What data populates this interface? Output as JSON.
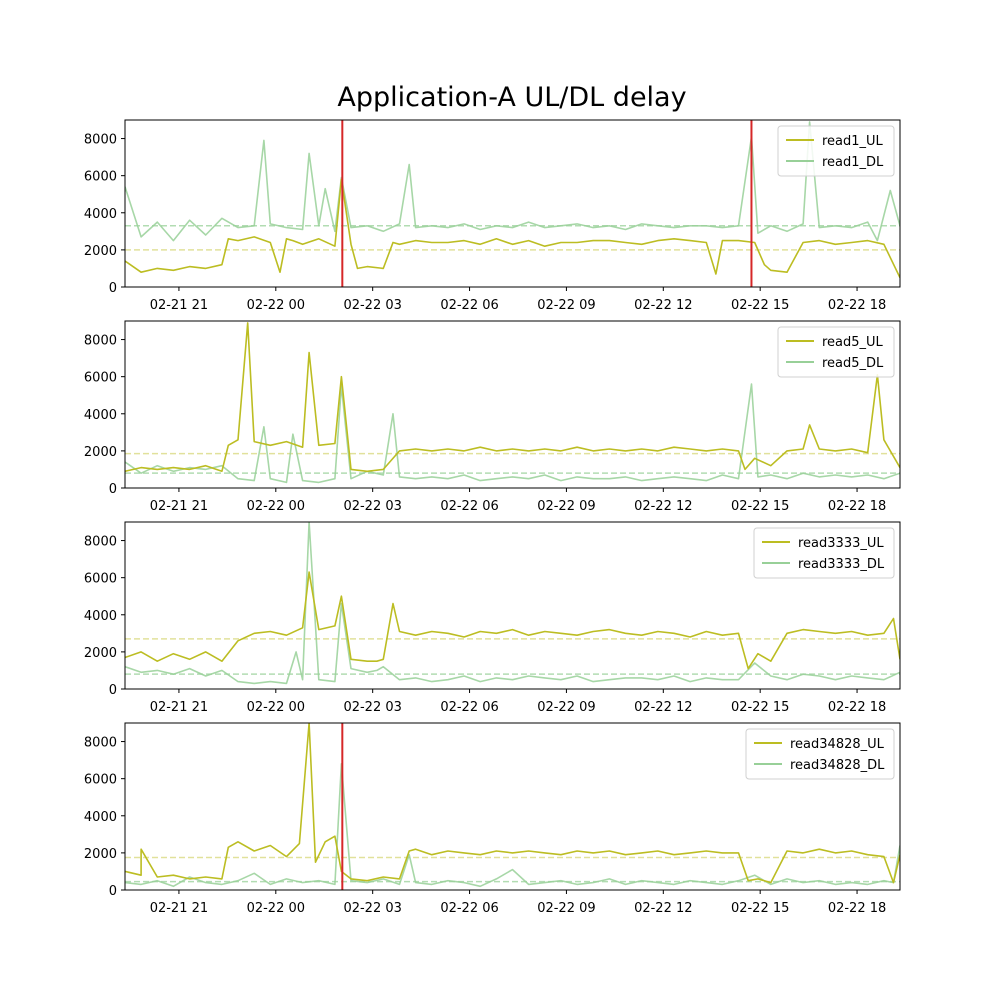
{
  "figure": {
    "title": "Application-A UL/DL delay"
  },
  "chart_data": [
    {
      "type": "line",
      "x_ticks": [
        "02-21 21",
        "02-22 00",
        "02-22 03",
        "02-22 06",
        "02-22 09",
        "02-22 12",
        "02-22 15",
        "02-22 18"
      ],
      "x_range": [
        "02-21 19:20",
        "02-22 19:20"
      ],
      "x_tick_hours": [
        1.67,
        4.67,
        7.67,
        10.67,
        13.67,
        16.67,
        19.67,
        22.67
      ],
      "ylim": [
        0,
        9000
      ],
      "y_ticks": [
        0,
        2000,
        4000,
        6000,
        8000
      ],
      "legend_position": "top-right",
      "series": [
        {
          "name": "read1_UL",
          "color": "#bcbd22",
          "mean_line": 2000,
          "x": [
            0,
            0.5,
            1,
            1.5,
            2,
            2.5,
            3,
            3.2,
            3.5,
            4,
            4.5,
            4.8,
            5,
            5.2,
            5.5,
            6,
            6.5,
            6.7,
            7,
            7.2,
            7.5,
            8,
            8.3,
            8.5,
            9,
            9.5,
            10,
            10.5,
            11,
            11.5,
            12,
            12.5,
            13,
            13.5,
            14,
            14.5,
            15,
            15.5,
            16,
            16.5,
            17,
            17.5,
            18,
            18.3,
            18.5,
            19,
            19.5,
            19.8,
            20,
            20.5,
            21,
            21.5,
            22,
            22.5,
            23,
            23.5,
            24
          ],
          "values": [
            1400,
            800,
            1000,
            900,
            1100,
            1000,
            1200,
            2600,
            2500,
            2700,
            2400,
            800,
            2600,
            2500,
            2300,
            2600,
            2200,
            5800,
            2300,
            1000,
            1100,
            1000,
            2400,
            2300,
            2500,
            2400,
            2400,
            2500,
            2300,
            2600,
            2300,
            2500,
            2200,
            2400,
            2400,
            2500,
            2500,
            2400,
            2300,
            2500,
            2600,
            2500,
            2400,
            700,
            2500,
            2500,
            2400,
            1200,
            900,
            800,
            2400,
            2500,
            2300,
            2400,
            2500,
            2300,
            500
          ]
        },
        {
          "name": "read1_DL",
          "color": "#98d098",
          "mean_line": 3300,
          "x": [
            0,
            0.5,
            1,
            1.5,
            2,
            2.5,
            3,
            3.5,
            4,
            4.3,
            4.5,
            5,
            5.5,
            5.7,
            6,
            6.2,
            6.5,
            6.7,
            7,
            7.5,
            8,
            8.5,
            8.8,
            9,
            9.5,
            10,
            10.5,
            11,
            11.5,
            12,
            12.5,
            13,
            13.5,
            14,
            14.5,
            15,
            15.5,
            16,
            16.5,
            17,
            17.5,
            18,
            18.5,
            19,
            19.4,
            19.6,
            20,
            20.5,
            21,
            21.2,
            21.5,
            22,
            22.5,
            23,
            23.3,
            23.7,
            24
          ],
          "values": [
            5400,
            2700,
            3500,
            2500,
            3600,
            2800,
            3700,
            3200,
            3300,
            7900,
            3400,
            3200,
            3100,
            7200,
            3300,
            5300,
            3000,
            5900,
            3200,
            3300,
            3000,
            3400,
            6600,
            3200,
            3300,
            3200,
            3400,
            3100,
            3300,
            3200,
            3500,
            3200,
            3300,
            3400,
            3200,
            3300,
            3100,
            3400,
            3300,
            3200,
            3300,
            3300,
            3200,
            3300,
            8100,
            2900,
            3300,
            3000,
            3400,
            8900,
            3200,
            3300,
            3200,
            3500,
            2500,
            5200,
            3300
          ]
        }
      ],
      "vertical_markers": [
        {
          "x": 6.73,
          "color": "#d62728"
        },
        {
          "x": 19.4,
          "color": "#d62728"
        }
      ]
    },
    {
      "type": "line",
      "x_ticks": [
        "02-21 21",
        "02-22 00",
        "02-22 03",
        "02-22 06",
        "02-22 09",
        "02-22 12",
        "02-22 15",
        "02-22 18"
      ],
      "x_range": [
        "02-21 19:20",
        "02-22 19:20"
      ],
      "x_tick_hours": [
        1.67,
        4.67,
        7.67,
        10.67,
        13.67,
        16.67,
        19.67,
        22.67
      ],
      "ylim": [
        0,
        9000
      ],
      "y_ticks": [
        0,
        2000,
        4000,
        6000,
        8000
      ],
      "legend_position": "top-right",
      "series": [
        {
          "name": "read5_UL",
          "color": "#bcbd22",
          "mean_line": 1850,
          "x": [
            0,
            0.5,
            1,
            1.5,
            2,
            2.5,
            3,
            3.2,
            3.5,
            3.8,
            4,
            4.5,
            5,
            5.5,
            5.7,
            6,
            6.5,
            6.7,
            7,
            7.5,
            8,
            8.5,
            9,
            9.5,
            10,
            10.5,
            11,
            11.5,
            12,
            12.5,
            13,
            13.5,
            14,
            14.5,
            15,
            15.5,
            16,
            16.5,
            17,
            17.5,
            18,
            18.5,
            19,
            19.2,
            19.5,
            20,
            20.5,
            21,
            21.2,
            21.5,
            22,
            22.5,
            23,
            23.3,
            23.5,
            24
          ],
          "values": [
            900,
            1100,
            1000,
            1100,
            1000,
            1200,
            900,
            2300,
            2600,
            8900,
            2500,
            2300,
            2500,
            2200,
            7300,
            2300,
            2400,
            6000,
            1000,
            900,
            1000,
            2000,
            2100,
            2000,
            2100,
            2000,
            2200,
            2000,
            2100,
            2000,
            2100,
            2000,
            2200,
            2000,
            2100,
            2000,
            2100,
            2000,
            2200,
            2100,
            2000,
            2100,
            2000,
            1000,
            1600,
            1200,
            2000,
            2100,
            3400,
            2100,
            2000,
            2100,
            1900,
            6100,
            2600,
            1100
          ]
        },
        {
          "name": "read5_DL",
          "color": "#98d098",
          "mean_line": 800,
          "x": [
            0,
            0.5,
            1,
            1.5,
            2,
            2.5,
            3,
            3.5,
            4,
            4.3,
            4.5,
            5,
            5.2,
            5.5,
            6,
            6.5,
            6.7,
            7,
            7.5,
            8,
            8.3,
            8.5,
            9,
            9.5,
            10,
            10.5,
            11,
            11.5,
            12,
            12.5,
            13,
            13.5,
            14,
            14.5,
            15,
            15.5,
            16,
            16.5,
            17,
            17.5,
            18,
            18.5,
            19,
            19.4,
            19.6,
            20,
            20.5,
            21,
            21.5,
            22,
            22.5,
            23,
            23.5,
            24
          ],
          "values": [
            1400,
            800,
            1200,
            900,
            1100,
            1000,
            1200,
            500,
            400,
            3300,
            500,
            300,
            2900,
            400,
            300,
            500,
            5500,
            500,
            900,
            700,
            4000,
            600,
            500,
            600,
            500,
            700,
            400,
            500,
            600,
            500,
            700,
            400,
            600,
            500,
            500,
            600,
            400,
            500,
            600,
            500,
            400,
            700,
            500,
            5600,
            600,
            700,
            500,
            800,
            600,
            700,
            600,
            700,
            500,
            800
          ]
        }
      ],
      "vertical_markers": []
    },
    {
      "type": "line",
      "x_ticks": [
        "02-21 21",
        "02-22 00",
        "02-22 03",
        "02-22 06",
        "02-22 09",
        "02-22 12",
        "02-22 15",
        "02-22 18"
      ],
      "x_range": [
        "02-21 19:20",
        "02-22 19:20"
      ],
      "x_tick_hours": [
        1.67,
        4.67,
        7.67,
        10.67,
        13.67,
        16.67,
        19.67,
        22.67
      ],
      "ylim": [
        0,
        9000
      ],
      "y_ticks": [
        0,
        2000,
        4000,
        6000,
        8000
      ],
      "legend_position": "top-right",
      "series": [
        {
          "name": "read3333_UL",
          "color": "#bcbd22",
          "mean_line": 2700,
          "x": [
            0,
            0.5,
            1,
            1.5,
            2,
            2.5,
            3,
            3.5,
            4,
            4.5,
            5,
            5.5,
            5.7,
            6,
            6.5,
            6.7,
            7,
            7.5,
            7.8,
            8,
            8.3,
            8.5,
            9,
            9.5,
            10,
            10.5,
            11,
            11.5,
            12,
            12.5,
            13,
            13.5,
            14,
            14.5,
            15,
            15.5,
            16,
            16.5,
            17,
            17.5,
            18,
            18.5,
            19,
            19.3,
            19.6,
            20,
            20.5,
            21,
            21.5,
            22,
            22.5,
            23,
            23.5,
            23.8,
            24
          ],
          "values": [
            1700,
            2000,
            1500,
            1900,
            1600,
            2000,
            1500,
            2600,
            3000,
            3100,
            2900,
            3300,
            6300,
            3200,
            3400,
            5000,
            1600,
            1500,
            1500,
            1600,
            4600,
            3100,
            2900,
            3100,
            3000,
            2800,
            3100,
            3000,
            3200,
            2900,
            3100,
            3000,
            2900,
            3100,
            3200,
            3000,
            2900,
            3100,
            3000,
            2800,
            3100,
            2900,
            3000,
            1100,
            1900,
            1500,
            3000,
            3200,
            3100,
            3000,
            3100,
            2900,
            3000,
            3800,
            1600
          ]
        },
        {
          "name": "read3333_DL",
          "color": "#98d098",
          "mean_line": 800,
          "x": [
            0,
            0.5,
            1,
            1.5,
            2,
            2.5,
            3,
            3.5,
            4,
            4.5,
            5,
            5.3,
            5.5,
            5.7,
            6,
            6.5,
            6.7,
            7,
            7.5,
            7.8,
            8,
            8.5,
            9,
            9.5,
            10,
            10.5,
            11,
            11.5,
            12,
            12.5,
            13,
            13.5,
            14,
            14.5,
            15,
            15.5,
            16,
            16.5,
            17,
            17.5,
            18,
            18.5,
            19,
            19.5,
            20,
            20.5,
            21,
            21.5,
            22,
            22.5,
            23,
            23.5,
            24
          ],
          "values": [
            1200,
            900,
            1000,
            800,
            1100,
            700,
            1000,
            400,
            300,
            400,
            300,
            2000,
            500,
            9000,
            500,
            400,
            4600,
            1100,
            900,
            1000,
            1200,
            500,
            600,
            400,
            500,
            700,
            400,
            600,
            500,
            700,
            600,
            500,
            700,
            400,
            500,
            600,
            600,
            500,
            700,
            400,
            600,
            500,
            500,
            1400,
            700,
            500,
            800,
            700,
            500,
            700,
            600,
            500,
            900
          ]
        }
      ],
      "vertical_markers": []
    },
    {
      "type": "line",
      "x_ticks": [
        "02-21 21",
        "02-22 00",
        "02-22 03",
        "02-22 06",
        "02-22 09",
        "02-22 12",
        "02-22 15",
        "02-22 18"
      ],
      "x_range": [
        "02-21 19:20",
        "02-22 19:20"
      ],
      "x_tick_hours": [
        1.67,
        4.67,
        7.67,
        10.67,
        13.67,
        16.67,
        19.67,
        22.67
      ],
      "ylim": [
        0,
        9000
      ],
      "y_ticks": [
        0,
        2000,
        4000,
        6000,
        8000
      ],
      "legend_position": "top-right",
      "series": [
        {
          "name": "read34828_UL",
          "color": "#bcbd22",
          "mean_line": 1750,
          "x": [
            0,
            0.5,
            0.5,
            1,
            1.5,
            2,
            2.5,
            3,
            3.2,
            3.5,
            4,
            4.5,
            5,
            5.4,
            5.7,
            5.9,
            6.2,
            6.5,
            6.7,
            7,
            7.5,
            8,
            8.5,
            8.8,
            9,
            9.5,
            10,
            10.5,
            11,
            11.5,
            12,
            12.5,
            13,
            13.5,
            14,
            14.5,
            15,
            15.5,
            16,
            16.5,
            17,
            17.5,
            18,
            18.5,
            19,
            19.3,
            19.6,
            20,
            20.5,
            21,
            21.5,
            22,
            22.5,
            23,
            23.5,
            23.8,
            24
          ],
          "values": [
            1000,
            800,
            2200,
            700,
            800,
            600,
            700,
            600,
            2300,
            2600,
            2100,
            2400,
            1800,
            2500,
            9000,
            1500,
            2600,
            2900,
            1000,
            600,
            500,
            700,
            600,
            2100,
            2200,
            1900,
            2100,
            2000,
            1900,
            2100,
            2000,
            2100,
            2000,
            1900,
            2100,
            2000,
            2100,
            1900,
            2000,
            2100,
            1900,
            2000,
            2100,
            2000,
            2000,
            500,
            600,
            400,
            2100,
            2000,
            2200,
            2000,
            2100,
            1900,
            1800,
            400,
            1900
          ]
        },
        {
          "name": "read34828_DL",
          "color": "#98d098",
          "mean_line": 450,
          "x": [
            0,
            0.5,
            1,
            1.5,
            2,
            2.5,
            3,
            3.5,
            4,
            4.5,
            5,
            5.5,
            6,
            6.5,
            6.7,
            7,
            7.5,
            8,
            8.5,
            8.8,
            9,
            9.5,
            10,
            10.5,
            11,
            11.5,
            12,
            12.5,
            13,
            13.5,
            14,
            14.5,
            15,
            15.5,
            16,
            16.5,
            17,
            17.5,
            18,
            18.5,
            19,
            19.5,
            20,
            20.5,
            21,
            21.5,
            22,
            22.5,
            23,
            23.5,
            23.8,
            24
          ],
          "values": [
            400,
            300,
            500,
            200,
            700,
            400,
            300,
            500,
            900,
            300,
            600,
            400,
            500,
            300,
            6800,
            500,
            400,
            600,
            300,
            1900,
            400,
            300,
            500,
            400,
            200,
            600,
            1100,
            300,
            400,
            500,
            300,
            400,
            600,
            300,
            500,
            400,
            300,
            500,
            400,
            300,
            500,
            800,
            300,
            600,
            400,
            500,
            300,
            400,
            300,
            500,
            400,
            2400
          ]
        }
      ],
      "vertical_markers": [
        {
          "x": 6.73,
          "color": "#d62728"
        }
      ]
    }
  ]
}
